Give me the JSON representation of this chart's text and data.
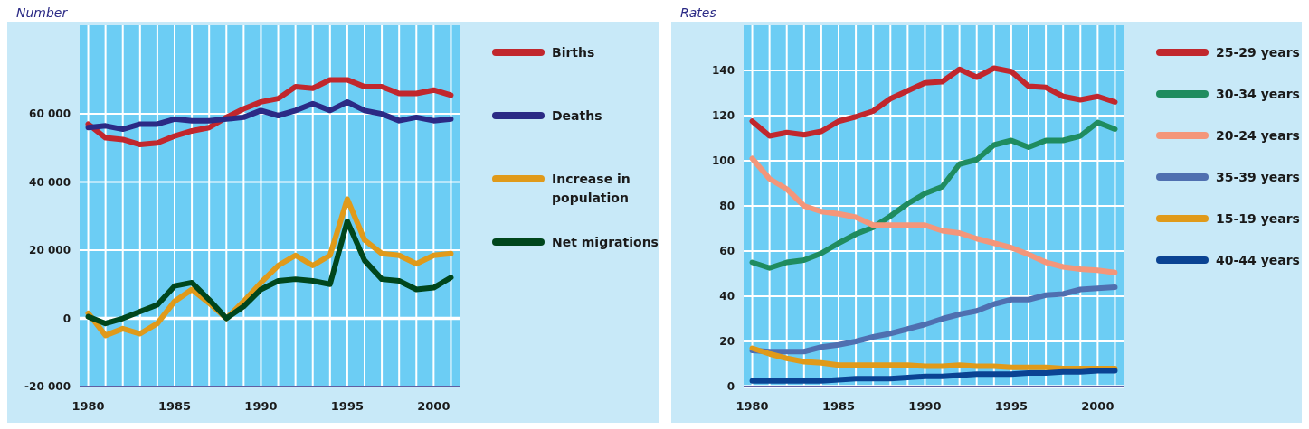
{
  "chart_data": [
    {
      "type": "line",
      "ylabel": "Number",
      "x": [
        1980,
        1981,
        1982,
        1983,
        1984,
        1985,
        1986,
        1987,
        1988,
        1989,
        1990,
        1991,
        1992,
        1993,
        1994,
        1995,
        1996,
        1997,
        1998,
        1999,
        2000,
        2001
      ],
      "xlim": [
        1979.5,
        2001.5
      ],
      "xticks": [
        1980,
        1985,
        1990,
        1995,
        2000
      ],
      "ylim": [
        -20000,
        86000
      ],
      "yticks": [
        {
          "value": -20000,
          "label": "-20 000"
        },
        {
          "value": 0,
          "label": "0"
        },
        {
          "value": 20000,
          "label": "20 000"
        },
        {
          "value": 40000,
          "label": "40 000"
        },
        {
          "value": 60000,
          "label": "60 000"
        }
      ],
      "grid": true,
      "legend": "right",
      "line_style": "solid",
      "marker": "none",
      "series": [
        {
          "name": "Births",
          "color": "#c1272d",
          "values": [
            57000,
            53000,
            52500,
            51000,
            51500,
            53500,
            55000,
            56000,
            59000,
            61500,
            63500,
            64500,
            68000,
            67500,
            70000,
            70000,
            68000,
            68000,
            66000,
            66000,
            67000,
            65500
          ]
        },
        {
          "name": "Deaths",
          "color": "#2b2a85",
          "values": [
            56000,
            56500,
            55500,
            57000,
            57000,
            58500,
            58000,
            58000,
            58500,
            59000,
            61000,
            59500,
            61000,
            63000,
            61000,
            63500,
            61000,
            60000,
            58000,
            59000,
            58000,
            58500
          ]
        },
        {
          "name": "Increase in population",
          "color": "#e09a1a",
          "values": [
            1500,
            -5000,
            -3000,
            -4500,
            -1500,
            5000,
            8500,
            4500,
            0,
            5000,
            10500,
            15500,
            18500,
            15500,
            18500,
            35000,
            23000,
            19000,
            18500,
            16000,
            18500,
            19000
          ]
        },
        {
          "name": "Net migrations",
          "color": "#00461c",
          "values": [
            500,
            -1500,
            0,
            2000,
            4000,
            9500,
            10500,
            5500,
            0,
            3500,
            8500,
            11000,
            11500,
            11000,
            10000,
            28500,
            17000,
            11500,
            11000,
            8500,
            9000,
            12000
          ]
        }
      ]
    },
    {
      "type": "line",
      "ylabel": "Rates",
      "x": [
        1980,
        1981,
        1982,
        1983,
        1984,
        1985,
        1986,
        1987,
        1988,
        1989,
        1990,
        1991,
        1992,
        1993,
        1994,
        1995,
        1996,
        1997,
        1998,
        1999,
        2000,
        2001
      ],
      "xlim": [
        1979.5,
        2001.5
      ],
      "xticks": [
        1980,
        1985,
        1990,
        1995,
        2000
      ],
      "ylim": [
        0,
        160
      ],
      "yticks": [
        0,
        20,
        40,
        60,
        80,
        100,
        120,
        140
      ],
      "grid": true,
      "legend": "right",
      "line_style": "solid",
      "marker": "none",
      "series": [
        {
          "name": "25-29 years",
          "color": "#c1272d",
          "values": [
            117.5,
            111,
            112.5,
            111.5,
            113,
            117.5,
            119.5,
            122,
            127.5,
            131,
            134.5,
            135,
            140.5,
            137,
            141,
            139.5,
            133,
            132.5,
            128.5,
            127,
            128.5,
            126
          ]
        },
        {
          "name": "30-34 years",
          "color": "#1f8c5f",
          "values": [
            55,
            52.5,
            55,
            56,
            59,
            63.5,
            67.5,
            70.5,
            75.5,
            81,
            85.5,
            88.5,
            98.5,
            100.5,
            107,
            109,
            106,
            109,
            109,
            111,
            117,
            114
          ]
        },
        {
          "name": "20-24 years",
          "color": "#f4967a",
          "values": [
            101,
            92,
            87.5,
            80,
            77.5,
            76.5,
            75,
            71.5,
            71.5,
            71.5,
            71.5,
            69,
            68,
            65.5,
            63.5,
            61.5,
            58.5,
            55,
            53,
            52,
            51.5,
            50.5
          ]
        },
        {
          "name": "35-39 years",
          "color": "#4f6fb0",
          "values": [
            16,
            15.5,
            15.5,
            15.5,
            17.5,
            18.5,
            20,
            22,
            23.5,
            25.5,
            27.5,
            30,
            32,
            33.5,
            36.5,
            38.5,
            38.5,
            40.5,
            41,
            43,
            43.5,
            44
          ]
        },
        {
          "name": "15-19 years",
          "color": "#e09a1a",
          "values": [
            17,
            14.5,
            12.5,
            11,
            10.5,
            9.5,
            9.5,
            9.5,
            9.5,
            9.5,
            9,
            9,
            9.5,
            9,
            9,
            8.5,
            8.5,
            8.5,
            8,
            8,
            8,
            8
          ]
        },
        {
          "name": "40-44 years",
          "color": "#0a4393",
          "values": [
            2.5,
            2.5,
            2.5,
            2.5,
            2.5,
            3,
            3.5,
            3.5,
            3.5,
            4,
            4.5,
            4.5,
            5,
            5.5,
            5.5,
            5.5,
            6,
            6,
            6.5,
            6.5,
            7,
            7
          ]
        }
      ]
    }
  ]
}
